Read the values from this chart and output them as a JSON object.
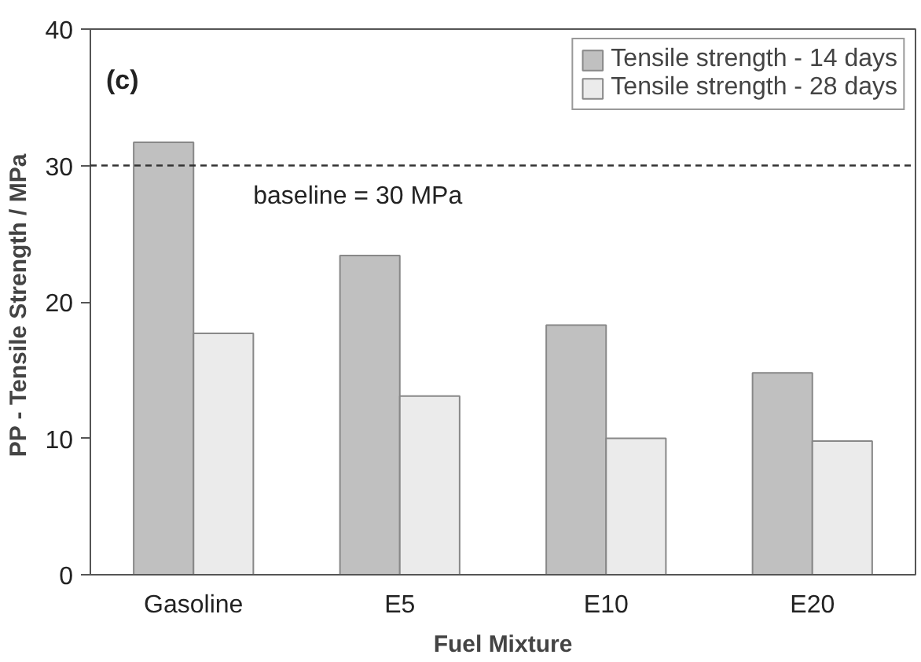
{
  "chart_data": {
    "type": "bar",
    "xlabel": "Fuel Mixture",
    "ylabel": "PP - Tensile Strength  / MPa",
    "categories": [
      "Gasoline",
      "E5",
      "E10",
      "E20"
    ],
    "series": [
      {
        "name": "Tensile strength - 14 days",
        "color": "#c0c0c0",
        "values": [
          31.7,
          23.4,
          18.3,
          14.8
        ]
      },
      {
        "name": "Tensile strength - 28 days",
        "color": "#ebebeb",
        "values": [
          17.7,
          13.1,
          10.0,
          9.8
        ]
      }
    ],
    "ylim": [
      0,
      40
    ],
    "yticks": [
      0,
      10,
      20,
      30,
      40
    ],
    "grid": false,
    "legend": "top right",
    "ref_lines": [
      {
        "axis": "y",
        "value": 30,
        "label": "baseline = 30 MPa",
        "color": "#333333",
        "line_style": "dashed"
      }
    ],
    "annotations": [
      "(c)"
    ]
  }
}
